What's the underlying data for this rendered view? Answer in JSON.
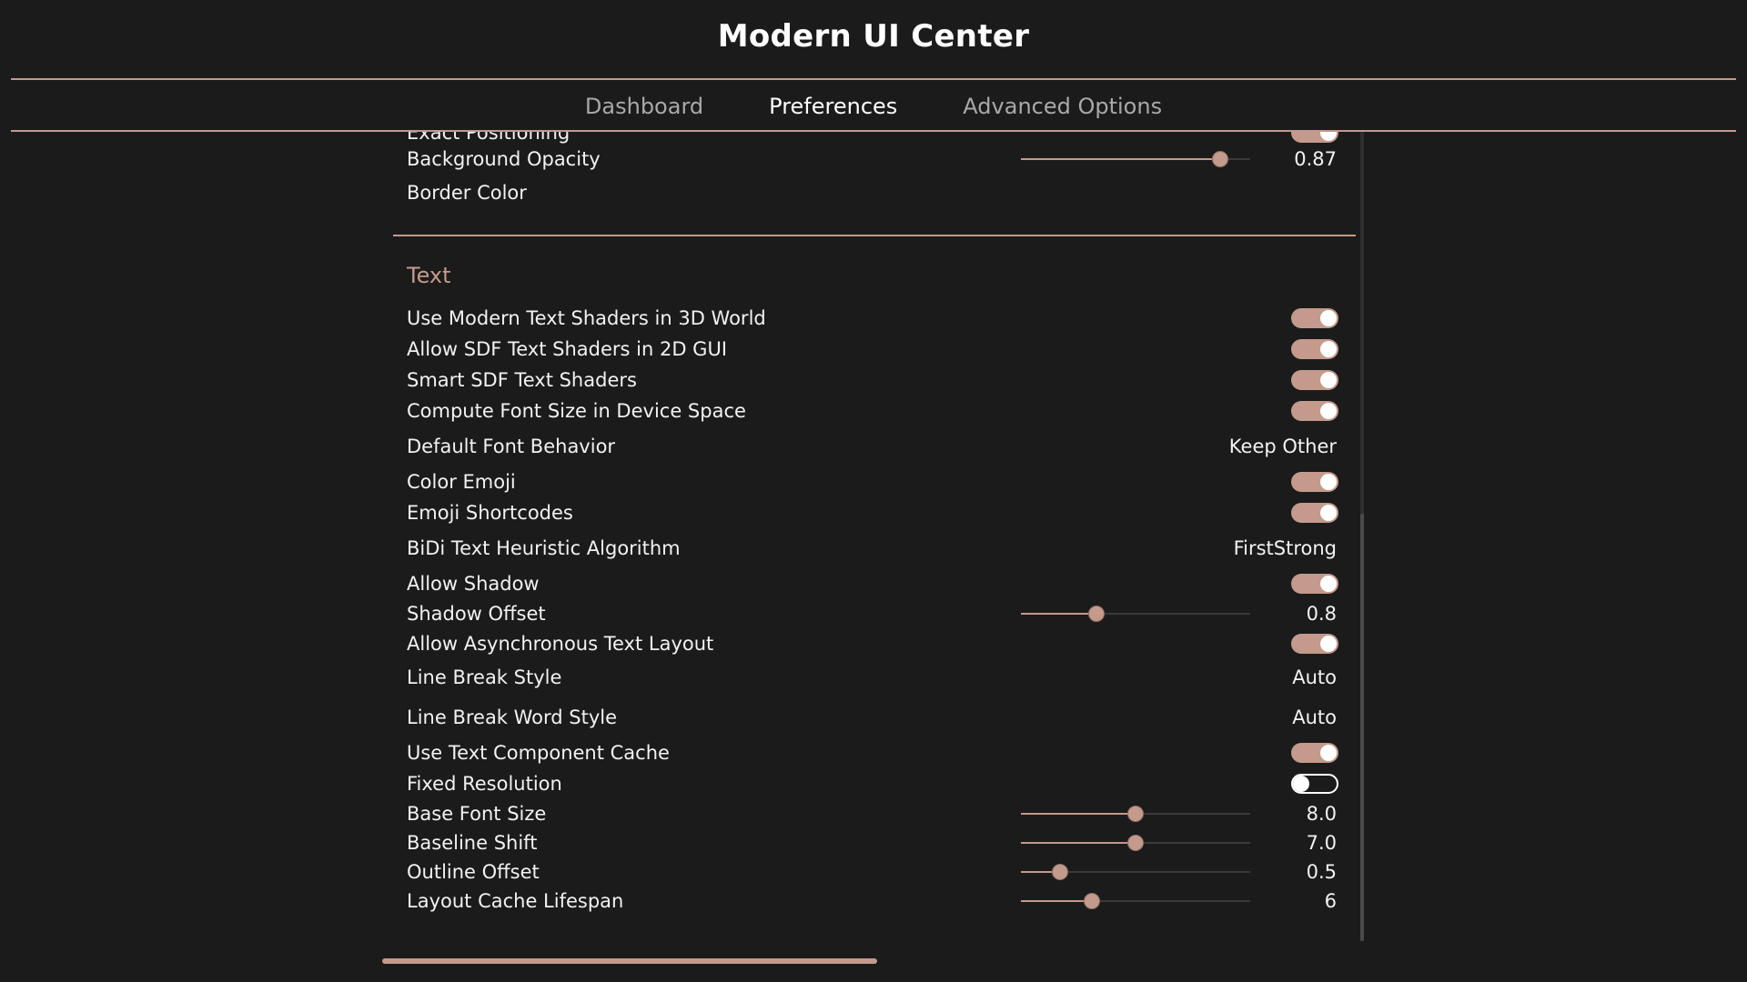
{
  "app": {
    "title": "Modern UI Center"
  },
  "tabs": [
    {
      "label": "Dashboard",
      "active": false
    },
    {
      "label": "Preferences",
      "active": true
    },
    {
      "label": "Advanced Options",
      "active": false
    }
  ],
  "settings": {
    "partial_top": {
      "label": "Exact Positioning",
      "toggle": true
    },
    "background_opacity": {
      "label": "Background Opacity",
      "value": "0.87",
      "fraction": 0.87
    },
    "border_color": {
      "label": "Border Color"
    },
    "text_section": {
      "title": "Text",
      "items": {
        "modern_shaders": {
          "label": "Use Modern Text Shaders in 3D World",
          "toggle": true
        },
        "sdf_2d": {
          "label": "Allow SDF Text Shaders in 2D GUI",
          "toggle": true
        },
        "smart_sdf": {
          "label": "Smart SDF Text Shaders",
          "toggle": true
        },
        "font_device": {
          "label": "Compute Font Size in Device Space",
          "toggle": true
        },
        "default_font": {
          "label": "Default Font Behavior",
          "value": "Keep Other"
        },
        "color_emoji": {
          "label": "Color Emoji",
          "toggle": true
        },
        "emoji_shortcodes": {
          "label": "Emoji Shortcodes",
          "toggle": true
        },
        "bidi": {
          "label": "BiDi Text Heuristic Algorithm",
          "value": "FirstStrong"
        },
        "allow_shadow": {
          "label": "Allow Shadow",
          "toggle": true
        },
        "shadow_offset": {
          "label": "Shadow Offset",
          "value": "0.8",
          "fraction": 0.33
        },
        "async_layout": {
          "label": "Allow Asynchronous Text Layout",
          "toggle": true
        },
        "line_break": {
          "label": "Line Break Style",
          "value": "Auto"
        },
        "line_break_word": {
          "label": "Line Break Word Style",
          "value": "Auto"
        },
        "component_cache": {
          "label": "Use Text Component Cache",
          "toggle": true
        },
        "fixed_resolution": {
          "label": "Fixed Resolution",
          "toggle": false
        },
        "base_font_size": {
          "label": "Base Font Size",
          "value": "8.0",
          "fraction": 0.5
        },
        "baseline_shift": {
          "label": "Baseline Shift",
          "value": "7.0",
          "fraction": 0.5
        },
        "outline_offset": {
          "label": "Outline Offset",
          "value": "0.5",
          "fraction": 0.17
        },
        "layout_cache": {
          "label": "Layout Cache Lifespan",
          "value": "6",
          "fraction": 0.31
        }
      }
    }
  },
  "colors": {
    "accent": "#c39a8c",
    "background": "#1b1b1b",
    "text": "#f2f2f2",
    "muted": "#a9a9a9"
  }
}
